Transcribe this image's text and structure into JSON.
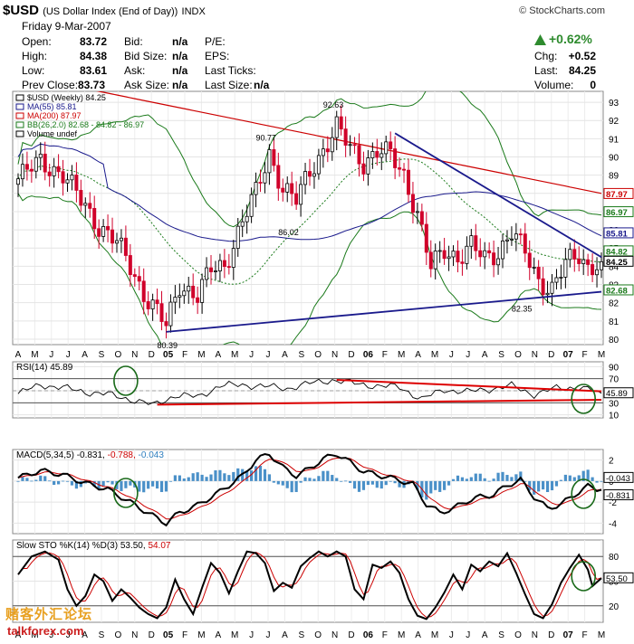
{
  "header": {
    "symbol": "$USD",
    "name": "(US Dollar Index (End of Day))",
    "exchange": "INDX",
    "copyright": "© StockCharts.com",
    "date": "Friday  9-Mar-2007",
    "fields": [
      {
        "label": "Open:",
        "value": "83.72"
      },
      {
        "label": "High:",
        "value": "84.38"
      },
      {
        "label": "Low:",
        "value": "83.61"
      },
      {
        "label": "Prev Close:",
        "value": "83.73"
      }
    ],
    "bid_fields": [
      {
        "label": "Bid:",
        "value": "n/a"
      },
      {
        "label": "Bid Size:",
        "value": "n/a"
      },
      {
        "label": "Ask:",
        "value": "n/a"
      },
      {
        "label": "Ask Size:",
        "value": "n/a"
      }
    ],
    "pe_fields": [
      {
        "label": "P/E:",
        "value": ""
      },
      {
        "label": "EPS:",
        "value": ""
      },
      {
        "label": "Last Ticks:",
        "value": ""
      },
      {
        "label": "Last Size:",
        "value": "n/a"
      }
    ],
    "change_pct": "+0.62%",
    "right_fields": [
      {
        "label": "Chg:",
        "value": "+0.52"
      },
      {
        "label": "Last:",
        "value": "84.25"
      },
      {
        "label": "Volume:",
        "value": "0"
      }
    ],
    "colors": {
      "up": "#2e8b2e"
    }
  },
  "watermark": {
    "cn": "赌客外汇论坛",
    "site": "talkforex.com"
  },
  "chart_data": [
    {
      "type": "candlestick",
      "legend": [
        {
          "text": "$USD (Weekly) 84.25",
          "color": "#000000"
        },
        {
          "text": "MA(55) 85.81",
          "color": "#1a1a8c"
        },
        {
          "text": "MA(200) 87.97",
          "color": "#cc0000"
        },
        {
          "text": "BB(26,2.0) 82.68 - 84.82 - 86.97",
          "color": "#1a7a1a"
        },
        {
          "text": "Volume undef",
          "color": "#000000"
        }
      ],
      "y_ticks": [
        80,
        81,
        82,
        83,
        84,
        85,
        86,
        87,
        88,
        89,
        90,
        91,
        92,
        93
      ],
      "ylim": [
        79.7,
        93.6
      ],
      "annotations": [
        "92.63",
        "90.77",
        "86.02",
        "80.39",
        "82.35"
      ],
      "right_labels": [
        {
          "text": "87.97",
          "value": 87.97,
          "color": "#cc0000"
        },
        {
          "text": "86.97",
          "value": 86.97,
          "color": "#1a7a1a"
        },
        {
          "text": "85.81",
          "value": 85.81,
          "color": "#1a1a8c"
        },
        {
          "text": "84.82",
          "value": 84.82,
          "color": "#1a7a1a"
        },
        {
          "text": "84.25",
          "value": 84.25,
          "color": "#000000"
        },
        {
          "text": "82.68",
          "value": 82.68,
          "color": "#1a7a1a"
        }
      ],
      "x_ticks": [
        "A",
        "M",
        "J",
        "J",
        "A",
        "S",
        "O",
        "N",
        "D",
        "05",
        "F",
        "M",
        "A",
        "M",
        "J",
        "J",
        "A",
        "S",
        "O",
        "N",
        "D",
        "06",
        "F",
        "M",
        "A",
        "M",
        "J",
        "J",
        "A",
        "S",
        "O",
        "N",
        "D",
        "07",
        "F",
        "M"
      ],
      "close_anchors": [
        [
          0,
          88.8
        ],
        [
          5,
          89.8
        ],
        [
          10,
          89.0
        ],
        [
          15,
          87.3
        ],
        [
          18,
          86.2
        ],
        [
          22,
          85.3
        ],
        [
          25,
          84.0
        ],
        [
          28,
          82.5
        ],
        [
          31,
          81.5
        ],
        [
          33,
          80.7
        ],
        [
          36,
          83.0
        ],
        [
          40,
          82.4
        ],
        [
          43,
          83.8
        ],
        [
          46,
          84.0
        ],
        [
          50,
          86.5
        ],
        [
          53,
          88.0
        ],
        [
          56,
          90.2
        ],
        [
          59,
          88.3
        ],
        [
          62,
          87.6
        ],
        [
          65,
          89.2
        ],
        [
          68,
          90.4
        ],
        [
          71,
          91.6
        ],
        [
          74,
          90.5
        ],
        [
          77,
          89.7
        ],
        [
          80,
          90.3
        ],
        [
          83,
          90.1
        ],
        [
          86,
          89.0
        ],
        [
          89,
          86.9
        ],
        [
          92,
          83.9
        ],
        [
          95,
          84.9
        ],
        [
          98,
          84.5
        ],
        [
          101,
          85.1
        ],
        [
          104,
          84.4
        ],
        [
          107,
          84.8
        ],
        [
          110,
          85.9
        ],
        [
          113,
          84.7
        ],
        [
          116,
          83.2
        ],
        [
          119,
          82.8
        ],
        [
          122,
          84.1
        ],
        [
          125,
          84.6
        ],
        [
          127,
          84.0
        ],
        [
          130,
          84.25
        ]
      ],
      "trendlines": [
        {
          "from": [
            33,
            80.4
          ],
          "to": [
            130,
            82.6
          ],
          "color": "#1a1a8c"
        },
        {
          "from": [
            84,
            91.3
          ],
          "to": [
            130,
            84.5
          ],
          "color": "#1a1a8c"
        }
      ]
    },
    {
      "type": "line",
      "title": "RSI(14) 45.89",
      "y_ticks": [
        10,
        30,
        50,
        70,
        90
      ],
      "ylim": [
        5,
        98
      ],
      "last_label": "45.89",
      "anchors": [
        [
          0,
          45
        ],
        [
          5,
          60
        ],
        [
          10,
          55
        ],
        [
          15,
          48
        ],
        [
          20,
          44
        ],
        [
          25,
          36
        ],
        [
          30,
          26
        ],
        [
          35,
          42
        ],
        [
          40,
          40
        ],
        [
          45,
          58
        ],
        [
          50,
          60
        ],
        [
          55,
          57
        ],
        [
          60,
          54
        ],
        [
          65,
          62
        ],
        [
          70,
          68
        ],
        [
          75,
          62
        ],
        [
          80,
          58
        ],
        [
          85,
          56
        ],
        [
          90,
          36
        ],
        [
          95,
          52
        ],
        [
          100,
          48
        ],
        [
          105,
          53
        ],
        [
          110,
          58
        ],
        [
          115,
          44
        ],
        [
          120,
          54
        ],
        [
          125,
          56
        ],
        [
          130,
          45.89
        ]
      ],
      "trendlines": [
        {
          "from": [
            71,
            68
          ],
          "to": [
            130,
            49
          ],
          "color": "#dd0000"
        },
        {
          "from": [
            31,
            27
          ],
          "to": [
            130,
            35
          ],
          "color": "#dd0000"
        }
      ]
    },
    {
      "type": "line",
      "title": "MACD(5,34,5) -0.831, -0.788, -0.043",
      "series": [
        {
          "name": "-0.831",
          "color": "#000000"
        },
        {
          "name": "-0.788",
          "color": "#cc0000"
        },
        {
          "name": "-0.043",
          "color": "#2f7fbf"
        }
      ],
      "y_ticks": [
        -4,
        -2,
        0,
        2
      ],
      "ylim": [
        -5,
        3
      ],
      "last_labels": [
        {
          "text": "-0.043",
          "value": -0.043
        },
        {
          "text": "-0.831",
          "value": -0.831
        }
      ],
      "macd_anchors": [
        [
          0,
          0.3
        ],
        [
          5,
          1.0
        ],
        [
          10,
          0.6
        ],
        [
          15,
          -0.2
        ],
        [
          20,
          -0.8
        ],
        [
          25,
          -2.0
        ],
        [
          30,
          -3.3
        ],
        [
          33,
          -4.0
        ],
        [
          36,
          -3.0
        ],
        [
          40,
          -2.3
        ],
        [
          45,
          -1.0
        ],
        [
          50,
          0.5
        ],
        [
          53,
          2.0
        ],
        [
          56,
          2.6
        ],
        [
          59,
          1.3
        ],
        [
          62,
          0.5
        ],
        [
          65,
          1.2
        ],
        [
          68,
          2.1
        ],
        [
          71,
          2.6
        ],
        [
          74,
          1.8
        ],
        [
          77,
          0.9
        ],
        [
          80,
          0.6
        ],
        [
          84,
          0.2
        ],
        [
          88,
          -0.3
        ],
        [
          91,
          -2.2
        ],
        [
          94,
          -3.0
        ],
        [
          97,
          -2.6
        ],
        [
          100,
          -1.9
        ],
        [
          103,
          -1.5
        ],
        [
          106,
          -1.3
        ],
        [
          109,
          -0.4
        ],
        [
          112,
          0.1
        ],
        [
          115,
          -1.5
        ],
        [
          118,
          -2.6
        ],
        [
          121,
          -2.2
        ],
        [
          124,
          -1.3
        ],
        [
          127,
          -0.5
        ],
        [
          130,
          -0.831
        ]
      ]
    },
    {
      "type": "line",
      "title": "Slow STO %K(14) %D(3) 53.50, 54.07",
      "series": [
        {
          "name": "53.50",
          "color": "#000000"
        },
        {
          "name": "54.07",
          "color": "#cc0000"
        }
      ],
      "y_ticks": [
        20,
        50,
        80
      ],
      "ylim": [
        0,
        100
      ],
      "last_label": "53.50",
      "k_anchors": [
        [
          0,
          58
        ],
        [
          3,
          80
        ],
        [
          6,
          86
        ],
        [
          9,
          76
        ],
        [
          11,
          40
        ],
        [
          13,
          20
        ],
        [
          15,
          32
        ],
        [
          17,
          58
        ],
        [
          19,
          50
        ],
        [
          21,
          26
        ],
        [
          23,
          40
        ],
        [
          25,
          30
        ],
        [
          27,
          18
        ],
        [
          29,
          10
        ],
        [
          31,
          5
        ],
        [
          33,
          18
        ],
        [
          35,
          52
        ],
        [
          37,
          28
        ],
        [
          39,
          10
        ],
        [
          41,
          42
        ],
        [
          43,
          72
        ],
        [
          45,
          60
        ],
        [
          47,
          35
        ],
        [
          49,
          62
        ],
        [
          51,
          86
        ],
        [
          53,
          84
        ],
        [
          55,
          72
        ],
        [
          57,
          38
        ],
        [
          59,
          48
        ],
        [
          61,
          42
        ],
        [
          63,
          68
        ],
        [
          65,
          78
        ],
        [
          67,
          86
        ],
        [
          69,
          80
        ],
        [
          71,
          86
        ],
        [
          73,
          80
        ],
        [
          75,
          40
        ],
        [
          77,
          28
        ],
        [
          79,
          70
        ],
        [
          81,
          66
        ],
        [
          83,
          74
        ],
        [
          85,
          60
        ],
        [
          87,
          28
        ],
        [
          89,
          8
        ],
        [
          91,
          4
        ],
        [
          93,
          18
        ],
        [
          95,
          36
        ],
        [
          97,
          58
        ],
        [
          99,
          40
        ],
        [
          101,
          70
        ],
        [
          103,
          62
        ],
        [
          105,
          74
        ],
        [
          107,
          68
        ],
        [
          109,
          84
        ],
        [
          111,
          60
        ],
        [
          113,
          34
        ],
        [
          115,
          10
        ],
        [
          117,
          5
        ],
        [
          119,
          22
        ],
        [
          121,
          48
        ],
        [
          123,
          66
        ],
        [
          125,
          82
        ],
        [
          127,
          64
        ],
        [
          128,
          44
        ],
        [
          130,
          53.5
        ]
      ]
    }
  ]
}
